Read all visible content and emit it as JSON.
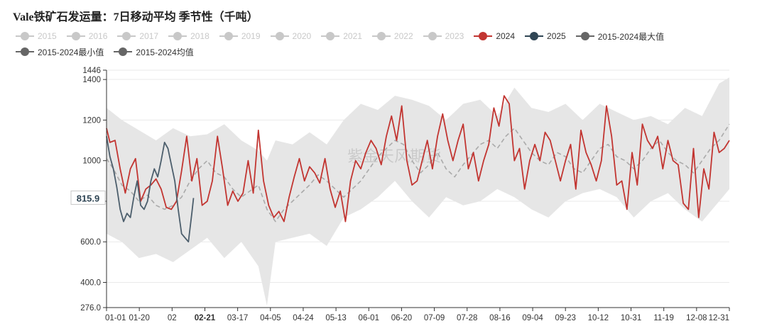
{
  "title": "Vale铁矿石发运量：7日移动平均 季节性（千吨）",
  "watermark": "紫金天风期货",
  "legend": [
    {
      "name": "2015",
      "color": "#c8c8c8",
      "active": false
    },
    {
      "name": "2016",
      "color": "#c8c8c8",
      "active": false
    },
    {
      "name": "2017",
      "color": "#c8c8c8",
      "active": false
    },
    {
      "name": "2018",
      "color": "#c8c8c8",
      "active": false
    },
    {
      "name": "2019",
      "color": "#c8c8c8",
      "active": false
    },
    {
      "name": "2020",
      "color": "#c8c8c8",
      "active": false
    },
    {
      "name": "2021",
      "color": "#c8c8c8",
      "active": false
    },
    {
      "name": "2022",
      "color": "#c8c8c8",
      "active": false
    },
    {
      "name": "2023",
      "color": "#c8c8c8",
      "active": false
    },
    {
      "name": "2024",
      "color": "#c23531",
      "active": true
    },
    {
      "name": "2025",
      "color": "#2f4554",
      "active": true
    },
    {
      "name": "2015-2024最大值",
      "color": "#666666",
      "active": true
    },
    {
      "name": "2015-2024最小值",
      "color": "#666666",
      "active": true
    },
    {
      "name": "2015-2024均值",
      "color": "#666666",
      "active": true
    }
  ],
  "chart_data": {
    "type": "line",
    "title": "Vale铁矿石发运量：7日移动平均 季节性（千吨）",
    "x_ticks": [
      "01-01",
      "01-20",
      "02",
      "02-21",
      "03-17",
      "04-05",
      "04-24",
      "05-13",
      "06-01",
      "06-20",
      "07-09",
      "07-28",
      "08-16",
      "09-04",
      "09-23",
      "10-12",
      "10-31",
      "11-19",
      "12-08",
      "12-31"
    ],
    "x_highlight": "02-21",
    "x_range_days": [
      1,
      366
    ],
    "y_ticks": [
      "276.0",
      "400.0",
      "600.0",
      "800.0",
      "1000",
      "1200",
      "1400",
      "1446"
    ],
    "ylim": [
      276,
      1446
    ],
    "y_pointer_label": "815.9",
    "y_pointer_value": 815.9,
    "grid": true,
    "legend_position": "top",
    "band": {
      "name_max": "2015-2024最大值",
      "name_min": "2015-2024最小值",
      "color": "#e6e6e6",
      "x": [
        1,
        10,
        20,
        30,
        40,
        50,
        60,
        70,
        80,
        90,
        95,
        100,
        110,
        120,
        130,
        140,
        150,
        160,
        170,
        180,
        190,
        200,
        210,
        220,
        230,
        240,
        250,
        260,
        270,
        280,
        290,
        300,
        310,
        320,
        330,
        340,
        350,
        360,
        366
      ],
      "max": [
        1260,
        1200,
        1150,
        1100,
        1160,
        1120,
        1130,
        1180,
        1100,
        1050,
        1000,
        1100,
        1080,
        1140,
        1080,
        1200,
        1280,
        1250,
        1320,
        1300,
        1270,
        1200,
        1280,
        1300,
        1220,
        1360,
        1260,
        1240,
        1280,
        1200,
        1280,
        1240,
        1200,
        1220,
        1180,
        1260,
        1220,
        1380,
        1410
      ],
      "min": [
        640,
        600,
        520,
        540,
        500,
        560,
        620,
        520,
        600,
        480,
        285,
        600,
        620,
        640,
        580,
        720,
        760,
        820,
        900,
        800,
        720,
        820,
        780,
        800,
        860,
        820,
        760,
        720,
        800,
        840,
        860,
        820,
        720,
        800,
        840,
        760,
        700,
        800,
        860
      ]
    },
    "series": [
      {
        "name": "2015-2024均值",
        "color": "#aaaaaa",
        "style": "dashed",
        "x": [
          1,
          5,
          10,
          15,
          20,
          25,
          30,
          35,
          40,
          45,
          50,
          55,
          60,
          65,
          70,
          75,
          80,
          85,
          90,
          95,
          100,
          105,
          110,
          115,
          120,
          125,
          130,
          135,
          140,
          145,
          150,
          155,
          160,
          165,
          170,
          175,
          180,
          185,
          190,
          195,
          200,
          205,
          210,
          215,
          220,
          225,
          230,
          235,
          240,
          245,
          250,
          255,
          260,
          265,
          270,
          275,
          280,
          285,
          290,
          295,
          300,
          305,
          310,
          315,
          320,
          325,
          330,
          335,
          340,
          345,
          350,
          355,
          360,
          366
        ],
        "values": [
          1010,
          960,
          880,
          850,
          800,
          830,
          780,
          760,
          780,
          820,
          900,
          960,
          1000,
          940,
          920,
          860,
          820,
          850,
          880,
          760,
          700,
          760,
          800,
          840,
          880,
          930,
          900,
          860,
          820,
          860,
          900,
          960,
          1020,
          1060,
          1100,
          1080,
          1000,
          940,
          980,
          1040,
          960,
          920,
          980,
          1030,
          1080,
          1100,
          1060,
          1120,
          1160,
          1100,
          1040,
          1000,
          980,
          1040,
          1020,
          960,
          940,
          1000,
          1060,
          1080,
          1020,
          1000,
          960,
          1000,
          1060,
          1100,
          1040,
          1000,
          980,
          940,
          1000,
          1060,
          1100,
          1180
        ]
      },
      {
        "name": "2024",
        "color": "#c23531",
        "style": "solid",
        "x": [
          1,
          3,
          6,
          9,
          12,
          15,
          18,
          21,
          24,
          27,
          30,
          33,
          36,
          39,
          42,
          45,
          48,
          51,
          54,
          57,
          60,
          63,
          66,
          69,
          72,
          75,
          78,
          81,
          84,
          87,
          90,
          93,
          96,
          99,
          102,
          105,
          108,
          111,
          114,
          117,
          120,
          123,
          126,
          129,
          132,
          135,
          138,
          141,
          144,
          147,
          150,
          153,
          156,
          159,
          162,
          165,
          168,
          171,
          174,
          177,
          180,
          183,
          186,
          189,
          192,
          195,
          198,
          201,
          204,
          207,
          210,
          213,
          216,
          219,
          222,
          225,
          228,
          231,
          234,
          237,
          240,
          243,
          246,
          249,
          252,
          255,
          258,
          261,
          264,
          267,
          270,
          273,
          276,
          279,
          282,
          285,
          288,
          291,
          294,
          297,
          300,
          303,
          306,
          309,
          312,
          315,
          318,
          321,
          324,
          327,
          330,
          333,
          336,
          339,
          342,
          345,
          348,
          351,
          354,
          357,
          360,
          363,
          366
        ],
        "values": [
          1160,
          1090,
          1100,
          960,
          840,
          960,
          1010,
          800,
          860,
          880,
          910,
          860,
          770,
          760,
          800,
          950,
          1120,
          900,
          1010,
          780,
          800,
          900,
          1120,
          960,
          780,
          850,
          800,
          840,
          1000,
          840,
          1150,
          900,
          780,
          720,
          750,
          700,
          820,
          920,
          1010,
          900,
          970,
          940,
          890,
          1010,
          860,
          770,
          850,
          700,
          900,
          1000,
          960,
          1040,
          1100,
          1060,
          980,
          1120,
          1220,
          1100,
          1270,
          1000,
          880,
          900,
          1000,
          1100,
          960,
          1120,
          1230,
          1100,
          1000,
          1100,
          1180,
          960,
          1040,
          900,
          1000,
          1080,
          1260,
          1170,
          1320,
          1280,
          1000,
          1060,
          860,
          1000,
          1080,
          1000,
          1140,
          1100,
          1000,
          900,
          1000,
          1080,
          860,
          1150,
          1040,
          980,
          900,
          1000,
          1270,
          1120,
          880,
          900,
          760,
          1040,
          880,
          1180,
          1100,
          1060,
          1120,
          960,
          1100,
          1000,
          980,
          790,
          760,
          1060,
          720,
          960,
          860,
          1140,
          1040,
          1060,
          1100
        ]
      },
      {
        "name": "2025",
        "color": "#4c5e6c",
        "style": "solid",
        "x": [
          1,
          3,
          5,
          7,
          9,
          11,
          13,
          15,
          17,
          19,
          21,
          23,
          25,
          27,
          29,
          31,
          33,
          35,
          37,
          39,
          41,
          43,
          45,
          47,
          49,
          51,
          52
        ],
        "values": [
          1120,
          1020,
          960,
          870,
          760,
          700,
          740,
          720,
          820,
          900,
          780,
          760,
          800,
          900,
          960,
          920,
          1000,
          1090,
          1060,
          980,
          900,
          760,
          640,
          620,
          600,
          740,
          816
        ]
      }
    ]
  }
}
